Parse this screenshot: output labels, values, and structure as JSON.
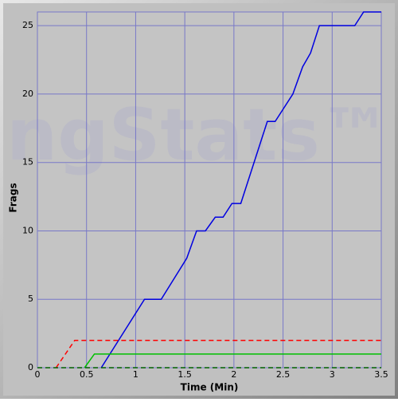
{
  "chart_data": {
    "type": "line",
    "watermark": "ngStats™",
    "xlabel": "Time (Min)",
    "ylabel": "Frags",
    "xlim": [
      0,
      3.5
    ],
    "xticks": [
      0,
      0.5,
      1,
      1.5,
      2,
      2.5,
      3,
      3.5
    ],
    "ylim": [
      0,
      26
    ],
    "yticks": [
      0,
      5,
      10,
      15,
      20,
      25
    ],
    "grid": true,
    "series": [
      {
        "color": "#0000e0",
        "dashed": false,
        "x": [
          0.65,
          1.09,
          1.26,
          1.52,
          1.62,
          1.71,
          1.81,
          1.89,
          1.98,
          2.07,
          2.34,
          2.42,
          2.6,
          2.7,
          2.78,
          2.87,
          3.23,
          3.32,
          3.5
        ],
        "values": [
          0,
          5,
          5,
          8,
          10,
          10,
          11,
          11,
          12,
          12,
          18,
          18,
          20,
          22,
          23,
          25,
          25,
          26,
          26
        ]
      },
      {
        "color": "#ff0000",
        "dashed": true,
        "x": [
          0.19,
          0.38,
          3.5
        ],
        "values": [
          0,
          2,
          2
        ]
      },
      {
        "color": "#00c000",
        "dashed": false,
        "x": [
          0.48,
          0.58,
          3.5
        ],
        "values": [
          0,
          1,
          1
        ]
      },
      {
        "color": "#006000",
        "dashed": true,
        "x": [
          0,
          3.5
        ],
        "values": [
          0,
          0
        ]
      }
    ]
  }
}
